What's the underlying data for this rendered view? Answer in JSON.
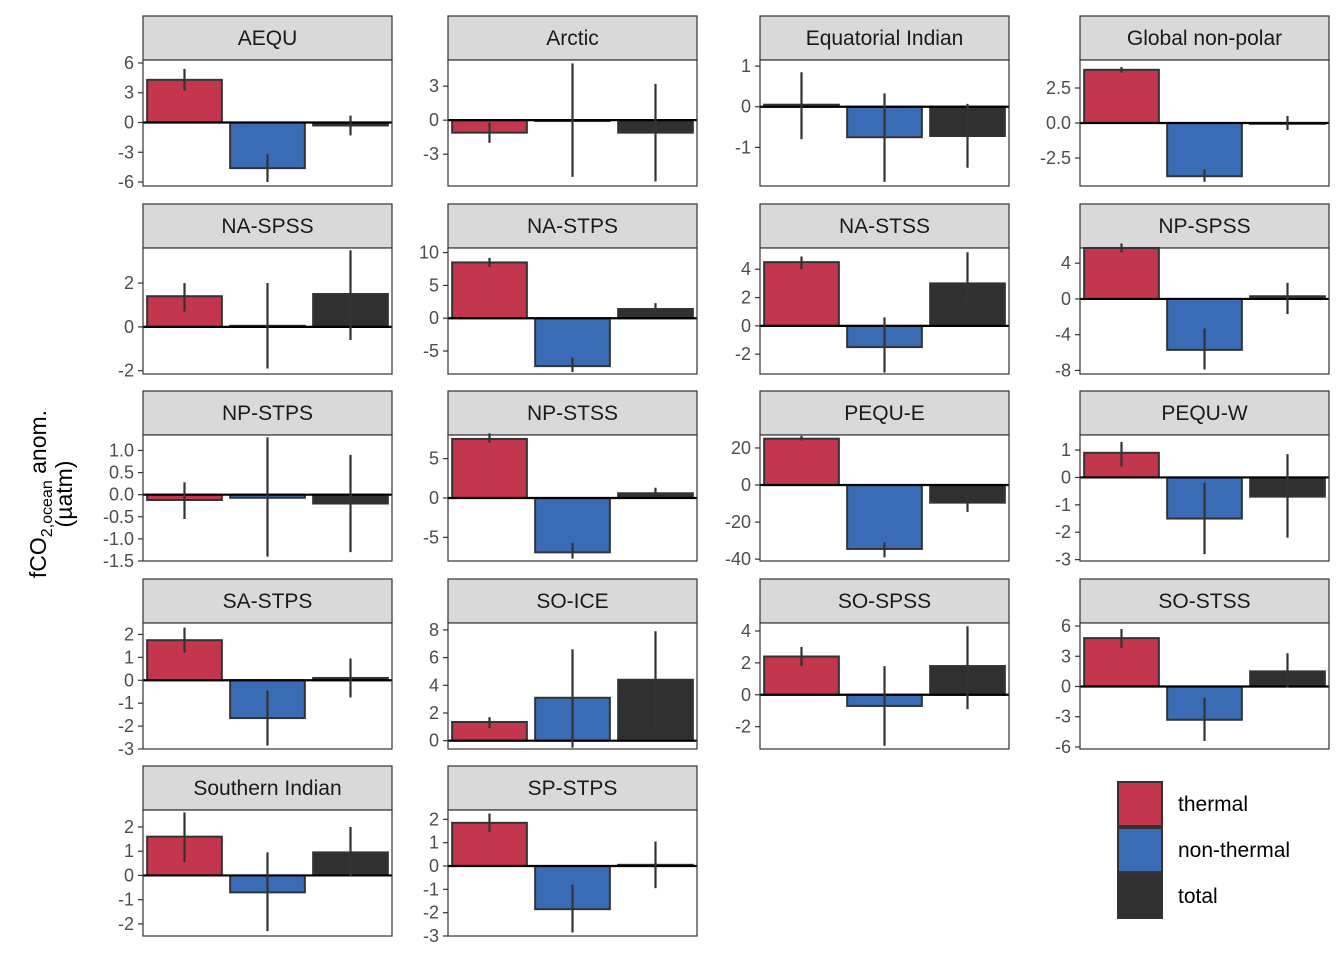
{
  "chart_data": {
    "type": "bar",
    "facet": "wrap",
    "y_label_main": "fCO",
    "y_label_sub": "2,ocean",
    "y_label_rest": " anom.",
    "y_label_unit": "(µatm)",
    "categories": [
      "thermal",
      "non-thermal",
      "total"
    ],
    "legend": {
      "position": "bottom-right",
      "entries": [
        {
          "label": "thermal",
          "color": "#C4364E"
        },
        {
          "label": "non-thermal",
          "color": "#3A6CB6"
        },
        {
          "label": "total",
          "color": "#303030"
        }
      ]
    },
    "panels": [
      {
        "title": "AEQU",
        "ylim": [
          -6.4,
          6.3
        ],
        "ticks": [
          -6,
          -3,
          0,
          3,
          6
        ],
        "values": [
          4.3,
          -4.6,
          -0.3
        ],
        "errors": [
          [
            3.2,
            5.4
          ],
          [
            -6.0,
            -3.2
          ],
          [
            -1.3,
            0.7
          ]
        ]
      },
      {
        "title": "Arctic",
        "ylim": [
          -5.8,
          5.3
        ],
        "ticks": [
          -3,
          0,
          3
        ],
        "values": [
          -1.1,
          -0.05,
          -1.1
        ],
        "errors": [
          [
            -2.0,
            -0.2
          ],
          [
            -5.0,
            5.0
          ],
          [
            -5.4,
            3.2
          ]
        ]
      },
      {
        "title": "Equatorial Indian",
        "ylim": [
          -1.95,
          1.15
        ],
        "ticks": [
          -1,
          0,
          1
        ],
        "values": [
          0.05,
          -0.75,
          -0.72
        ],
        "errors": [
          [
            -0.8,
            0.85
          ],
          [
            -1.85,
            0.33
          ],
          [
            -1.5,
            0.07
          ]
        ]
      },
      {
        "title": "Global non-polar",
        "ylim": [
          -4.5,
          4.5
        ],
        "ticks": [
          -2.5,
          0.0,
          2.5
        ],
        "tick_labels": [
          "-2.5",
          "0.0",
          "2.5"
        ],
        "values": [
          3.8,
          -3.8,
          0.0
        ],
        "errors": [
          [
            3.6,
            4.0
          ],
          [
            -4.2,
            -3.3
          ],
          [
            -0.5,
            0.5
          ]
        ]
      },
      {
        "title": "NA-SPSS",
        "ylim": [
          -2.15,
          3.6
        ],
        "ticks": [
          -2,
          0,
          2
        ],
        "values": [
          1.4,
          0.05,
          1.5
        ],
        "errors": [
          [
            0.7,
            2.0
          ],
          [
            -1.9,
            2.0
          ],
          [
            -0.6,
            3.5
          ]
        ]
      },
      {
        "title": "NA-STPS",
        "ylim": [
          -8.5,
          10.7
        ],
        "ticks": [
          -5,
          0,
          5,
          10
        ],
        "values": [
          8.5,
          -7.3,
          1.4
        ],
        "errors": [
          [
            7.8,
            9.2
          ],
          [
            -8.2,
            -6.0
          ],
          [
            0.6,
            2.3
          ]
        ]
      },
      {
        "title": "NA-STSS",
        "ylim": [
          -3.4,
          5.5
        ],
        "ticks": [
          -2,
          0,
          2,
          4
        ],
        "values": [
          4.5,
          -1.5,
          3.0
        ],
        "errors": [
          [
            4.0,
            4.9
          ],
          [
            -3.3,
            0.6
          ],
          [
            1.6,
            5.2
          ]
        ]
      },
      {
        "title": "NP-SPSS",
        "ylim": [
          -8.4,
          5.7
        ],
        "ticks": [
          -8,
          -4,
          0,
          4
        ],
        "values": [
          5.7,
          -5.7,
          0.3
        ],
        "errors": [
          [
            5.2,
            6.2
          ],
          [
            -7.9,
            -3.3
          ],
          [
            -1.7,
            1.8
          ]
        ]
      },
      {
        "title": "NP-STPS",
        "ylim": [
          -1.5,
          1.35
        ],
        "ticks": [
          -1.5,
          -1.0,
          -0.5,
          0.0,
          0.5,
          1.0
        ],
        "tick_labels": [
          "-1.5",
          "-1.0",
          "-0.5",
          "0.0",
          "0.5",
          "1.0"
        ],
        "values": [
          -0.12,
          -0.07,
          -0.2
        ],
        "errors": [
          [
            -0.55,
            0.28
          ],
          [
            -1.4,
            1.3
          ],
          [
            -1.3,
            0.9
          ]
        ]
      },
      {
        "title": "NP-STSS",
        "ylim": [
          -8.0,
          8.0
        ],
        "ticks": [
          -5,
          0,
          5
        ],
        "values": [
          7.5,
          -6.9,
          0.6
        ],
        "errors": [
          [
            7.0,
            8.2
          ],
          [
            -7.7,
            -5.7
          ],
          [
            0.2,
            1.3
          ]
        ]
      },
      {
        "title": "PEQU-E",
        "ylim": [
          -41.0,
          27.0
        ],
        "ticks": [
          -40,
          -20,
          0,
          20
        ],
        "values": [
          25.0,
          -34.5,
          -9.5
        ],
        "errors": [
          [
            24.0,
            26.5
          ],
          [
            -39.0,
            -31.0
          ],
          [
            -14.5,
            -5.0
          ]
        ]
      },
      {
        "title": "PEQU-W",
        "ylim": [
          -3.05,
          1.55
        ],
        "ticks": [
          -3,
          -2,
          -1,
          0,
          1
        ],
        "values": [
          0.9,
          -1.5,
          -0.7
        ],
        "errors": [
          [
            0.4,
            1.3
          ],
          [
            -2.8,
            -0.2
          ],
          [
            -2.2,
            0.85
          ]
        ]
      },
      {
        "title": "SA-STPS",
        "ylim": [
          -3.0,
          2.5
        ],
        "ticks": [
          -3,
          -2,
          -1,
          0,
          1,
          2
        ],
        "values": [
          1.75,
          -1.65,
          0.1
        ],
        "errors": [
          [
            1.2,
            2.3
          ],
          [
            -2.85,
            -0.45
          ],
          [
            -0.75,
            0.95
          ]
        ]
      },
      {
        "title": "SO-ICE",
        "ylim": [
          -0.6,
          8.5
        ],
        "ticks": [
          0,
          2,
          4,
          6,
          8
        ],
        "values": [
          1.35,
          3.1,
          4.4
        ],
        "errors": [
          [
            0.9,
            1.7
          ],
          [
            -0.5,
            6.6
          ],
          [
            0.9,
            7.9
          ]
        ]
      },
      {
        "title": "SO-SPSS",
        "ylim": [
          -3.4,
          4.5
        ],
        "ticks": [
          -2,
          0,
          2,
          4
        ],
        "values": [
          2.4,
          -0.7,
          1.8
        ],
        "errors": [
          [
            1.8,
            3.0
          ],
          [
            -3.2,
            1.8
          ],
          [
            -0.9,
            4.3
          ]
        ]
      },
      {
        "title": "SO-STSS",
        "ylim": [
          -6.2,
          6.3
        ],
        "ticks": [
          -6,
          -3,
          0,
          3,
          6
        ],
        "values": [
          4.8,
          -3.3,
          1.5
        ],
        "errors": [
          [
            3.8,
            5.7
          ],
          [
            -5.4,
            -1.1
          ],
          [
            -0.1,
            3.3
          ]
        ]
      },
      {
        "title": "Southern Indian",
        "ylim": [
          -2.5,
          2.7
        ],
        "ticks": [
          -2,
          -1,
          0,
          1,
          2
        ],
        "values": [
          1.6,
          -0.7,
          0.95
        ],
        "errors": [
          [
            0.55,
            2.6
          ],
          [
            -2.3,
            0.95
          ],
          [
            -0.05,
            2.0
          ]
        ]
      },
      {
        "title": "SP-STPS",
        "ylim": [
          -3.0,
          2.4
        ],
        "ticks": [
          -3,
          -2,
          -1,
          0,
          1,
          2
        ],
        "values": [
          1.85,
          -1.85,
          0.05
        ],
        "errors": [
          [
            1.45,
            2.25
          ],
          [
            -2.85,
            -0.8
          ],
          [
            -0.95,
            1.05
          ]
        ]
      }
    ]
  }
}
